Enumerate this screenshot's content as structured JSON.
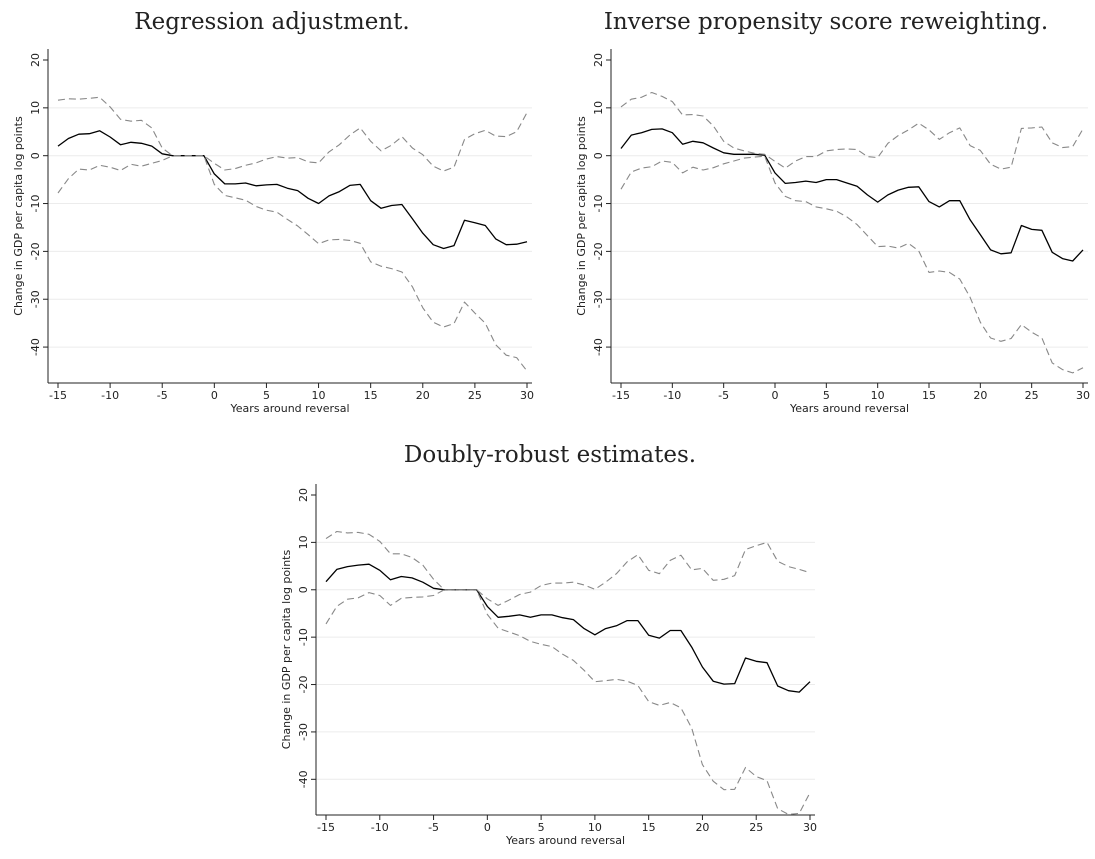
{
  "chart_data": [
    {
      "type": "line",
      "title": "Regression adjustment.",
      "xlabel": "Years around reversal",
      "ylabel": "Change in GDP per capita log points",
      "xlim": [
        -15,
        30
      ],
      "ylim": [
        -45,
        20
      ],
      "xticks": [
        -15,
        -10,
        -5,
        0,
        5,
        10,
        15,
        20,
        25,
        30
      ],
      "xtick_labels": [
        "-15",
        "-10",
        "-5",
        "0",
        "5",
        "10",
        "15",
        "20",
        "25",
        "30"
      ],
      "yticks": [
        -40,
        -30,
        -20,
        -10,
        0,
        10,
        20
      ],
      "ytick_labels": [
        "-40",
        "-30",
        "-20",
        "-10",
        "0",
        "10",
        "20"
      ],
      "grid": "horizontal",
      "legend": "none",
      "x": [
        -15,
        -14,
        -13,
        -12,
        -11,
        -10,
        -9,
        -8,
        -7,
        -6,
        -5,
        -4,
        -3,
        -2,
        -1,
        0,
        1,
        2,
        3,
        4,
        5,
        6,
        7,
        8,
        9,
        10,
        11,
        12,
        13,
        14,
        15,
        16,
        17,
        18,
        19,
        20,
        21,
        22,
        23,
        24,
        25,
        26,
        27,
        28,
        29,
        30
      ],
      "series": [
        {
          "style": "solid",
          "color": "#000000",
          "values": [
            2,
            3.6,
            4.5,
            4.6,
            5.2,
            3.9,
            2.3,
            2.8,
            2.6,
            2,
            0.4,
            0,
            0,
            0,
            0,
            -3.8,
            -5.9,
            -5.9,
            -5.7,
            -6.3,
            -6.1,
            -6,
            -6.8,
            -7.3,
            -8.9,
            -10,
            -8.4,
            -7.5,
            -6.2,
            -6,
            -9.4,
            -11,
            -10.4,
            -10.2,
            -13.2,
            -16.2,
            -18.6,
            -19.4,
            -18.8,
            -13.5,
            -14,
            -14.6,
            -17.4,
            -18.6,
            -18.5,
            -18
          ]
        },
        {
          "style": "dashed",
          "color": "#888888",
          "values": [
            11.6,
            11.9,
            11.8,
            12,
            12.2,
            10.2,
            7.6,
            7.2,
            7.4,
            5.8,
            1.6,
            0,
            0,
            0,
            0,
            -1.6,
            -3,
            -2.7,
            -2,
            -1.5,
            -0.7,
            -0.2,
            -0.5,
            -0.4,
            -1.3,
            -1.5,
            0.8,
            2.3,
            4.3,
            5.8,
            3,
            1,
            2.2,
            4,
            1.6,
            0.2,
            -2.2,
            -3.2,
            -2.4,
            3.4,
            4.6,
            5.3,
            4.1,
            4,
            5,
            9
          ]
        },
        {
          "style": "dashed",
          "color": "#888888",
          "values": [
            -7.8,
            -4.8,
            -2.8,
            -3,
            -2,
            -2.4,
            -3.1,
            -1.8,
            -2.2,
            -1.6,
            -1,
            0,
            0,
            0,
            0,
            -6,
            -8.3,
            -8.8,
            -9.3,
            -10.6,
            -11.4,
            -11.8,
            -13.3,
            -14.7,
            -16.5,
            -18.4,
            -17.6,
            -17.5,
            -17.7,
            -18.3,
            -22.2,
            -23.1,
            -23.6,
            -24.3,
            -27.4,
            -31.8,
            -34.8,
            -35.8,
            -35.1,
            -30.6,
            -32.9,
            -35,
            -39.5,
            -41.7,
            -42.2,
            -45
          ]
        }
      ]
    },
    {
      "type": "line",
      "title": "Inverse propensity score reweighting.",
      "xlabel": "Years around reversal",
      "ylabel": "Change in GDP per capita log points",
      "xlim": [
        -15,
        30
      ],
      "ylim": [
        -45,
        20
      ],
      "xticks": [
        -15,
        -10,
        -5,
        0,
        5,
        10,
        15,
        20,
        25,
        30
      ],
      "xtick_labels": [
        "-15",
        "-10",
        "-5",
        "0",
        "5",
        "10",
        "15",
        "20",
        "25",
        "30"
      ],
      "yticks": [
        -40,
        -30,
        -20,
        -10,
        0,
        10,
        20
      ],
      "ytick_labels": [
        "-40",
        "-30",
        "-20",
        "-10",
        "0",
        "10",
        "20"
      ],
      "grid": "horizontal",
      "legend": "none",
      "x": [
        -15,
        -14,
        -13,
        -12,
        -11,
        -10,
        -9,
        -8,
        -7,
        -6,
        -5,
        -4,
        -3,
        -2,
        -1,
        0,
        1,
        2,
        3,
        4,
        5,
        6,
        7,
        8,
        9,
        10,
        11,
        12,
        13,
        14,
        15,
        16,
        17,
        18,
        19,
        20,
        21,
        22,
        23,
        24,
        25,
        26,
        27,
        28,
        29,
        30
      ],
      "series": [
        {
          "style": "solid",
          "color": "#000000",
          "values": [
            1.5,
            4.3,
            4.8,
            5.5,
            5.6,
            4.8,
            2.4,
            3,
            2.7,
            1.6,
            0.6,
            0.3,
            0.3,
            0.3,
            0.1,
            -3.6,
            -5.8,
            -5.6,
            -5.3,
            -5.6,
            -5,
            -5,
            -5.7,
            -6.4,
            -8.2,
            -9.7,
            -8.2,
            -7.2,
            -6.6,
            -6.5,
            -9.6,
            -10.7,
            -9.4,
            -9.4,
            -13.4,
            -16.5,
            -19.7,
            -20.5,
            -20.3,
            -14.6,
            -15.4,
            -15.6,
            -20.2,
            -21.5,
            -22,
            -19.7
          ]
        },
        {
          "style": "dashed",
          "color": "#888888",
          "values": [
            10.2,
            11.8,
            12.2,
            13.2,
            12.4,
            11.3,
            8.5,
            8.6,
            8.3,
            6.2,
            3,
            1.6,
            1,
            0.5,
            0.3,
            -1.2,
            -2.6,
            -1.1,
            -0.2,
            -0.2,
            1,
            1.3,
            1.4,
            1.3,
            -0.2,
            -0.4,
            2.6,
            4.2,
            5.4,
            6.8,
            5.4,
            3.4,
            4.8,
            5.8,
            2.1,
            1.1,
            -1.8,
            -2.8,
            -2.4,
            5.7,
            5.8,
            6,
            2.7,
            1.7,
            1.9,
            5.6
          ]
        },
        {
          "style": "dashed",
          "color": "#888888",
          "values": [
            -7,
            -3.4,
            -2.6,
            -2.3,
            -1.1,
            -1.4,
            -3.6,
            -2.4,
            -3,
            -2.5,
            -1.7,
            -1.1,
            -0.5,
            -0.3,
            -0.1,
            -5.7,
            -8.5,
            -9.4,
            -9.6,
            -10.7,
            -11.1,
            -11.6,
            -12.8,
            -14.4,
            -16.7,
            -19,
            -18.9,
            -19.3,
            -18.3,
            -19.9,
            -24.4,
            -24.1,
            -24.4,
            -25.8,
            -29.6,
            -34.8,
            -38.1,
            -38.8,
            -38.2,
            -35.3,
            -36.9,
            -38.1,
            -43.3,
            -44.7,
            -45.4,
            -44.3
          ]
        }
      ]
    },
    {
      "type": "line",
      "title": "Doubly-robust estimates.",
      "xlabel": "Years around reversal",
      "ylabel": "Change in GDP per capita log points",
      "xlim": [
        -15,
        30
      ],
      "ylim": [
        -45,
        20
      ],
      "xticks": [
        -15,
        -10,
        -5,
        0,
        5,
        10,
        15,
        20,
        25,
        30
      ],
      "xtick_labels": [
        "-15",
        "-10",
        "-5",
        "0",
        "5",
        "10",
        "15",
        "20",
        "25",
        "30"
      ],
      "yticks": [
        -40,
        -30,
        -20,
        -10,
        0,
        10,
        20
      ],
      "ytick_labels": [
        "-40",
        "-30",
        "-20",
        "-10",
        "0",
        "10",
        "20"
      ],
      "grid": "horizontal",
      "legend": "none",
      "x": [
        -15,
        -14,
        -13,
        -12,
        -11,
        -10,
        -9,
        -8,
        -7,
        -6,
        -5,
        -4,
        -3,
        -2,
        -1,
        0,
        1,
        2,
        3,
        4,
        5,
        6,
        7,
        8,
        9,
        10,
        11,
        12,
        13,
        14,
        15,
        16,
        17,
        18,
        19,
        20,
        21,
        22,
        23,
        24,
        25,
        26,
        27,
        28,
        29,
        30
      ],
      "series": [
        {
          "style": "solid",
          "color": "#000000",
          "values": [
            1.7,
            4.3,
            4.9,
            5.2,
            5.4,
            4.1,
            2.1,
            2.8,
            2.5,
            1.6,
            0.3,
            0,
            0,
            0,
            0,
            -3.5,
            -5.8,
            -5.6,
            -5.3,
            -5.8,
            -5.3,
            -5.3,
            -5.9,
            -6.3,
            -8.2,
            -9.5,
            -8.2,
            -7.6,
            -6.5,
            -6.5,
            -9.6,
            -10.2,
            -8.6,
            -8.6,
            -12.1,
            -16.3,
            -19.3,
            -19.9,
            -19.8,
            -14.4,
            -15.1,
            -15.4,
            -20.3,
            -21.3,
            -21.6,
            -19.4
          ]
        },
        {
          "style": "dashed",
          "color": "#888888",
          "values": [
            10.8,
            12.3,
            12,
            12.1,
            11.7,
            10.2,
            7.6,
            7.6,
            6.8,
            5.2,
            2.2,
            0,
            0,
            0,
            0,
            -1.9,
            -3.3,
            -2.2,
            -1,
            -0.5,
            0.9,
            1.4,
            1.4,
            1.6,
            1,
            0.1,
            1.6,
            3.4,
            5.9,
            7.4,
            4.1,
            3.4,
            6.2,
            7.3,
            4.2,
            4.5,
            2,
            2.2,
            3,
            8.5,
            9.3,
            10,
            6,
            4.9,
            4.3,
            3.6
          ]
        },
        {
          "style": "dashed",
          "color": "#888888",
          "values": [
            -7.2,
            -3.5,
            -2,
            -1.7,
            -0.6,
            -1.2,
            -3.3,
            -1.8,
            -1.6,
            -1.5,
            -1.2,
            0,
            0,
            0,
            0,
            -5.2,
            -8.1,
            -8.9,
            -9.7,
            -10.9,
            -11.5,
            -12,
            -13.6,
            -14.9,
            -17,
            -19.4,
            -19.2,
            -18.9,
            -19.3,
            -20.2,
            -23.6,
            -24.4,
            -23.8,
            -24.9,
            -29.2,
            -36.9,
            -40.4,
            -42.2,
            -42.1,
            -37.5,
            -39.4,
            -40.3,
            -46.2,
            -47.4,
            -47.2,
            -42.8
          ]
        }
      ]
    }
  ]
}
